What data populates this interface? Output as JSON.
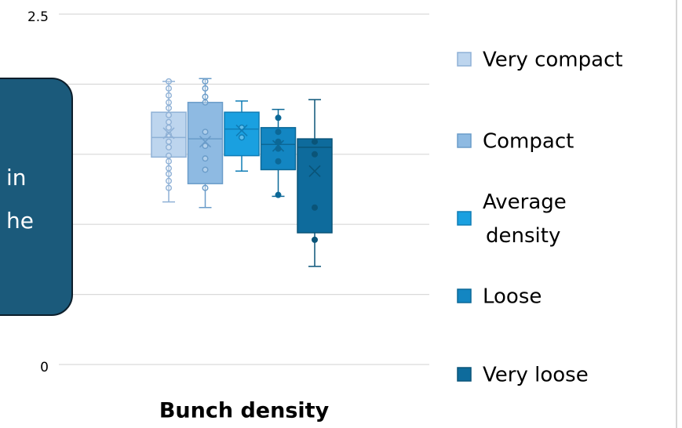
{
  "chart_data": {
    "type": "box",
    "x_label": "Bunch density",
    "ylim": [
      0,
      2.5
    ],
    "yticks": [
      0,
      0.5,
      1,
      1.5,
      2,
      2.5
    ],
    "grid": true,
    "legend": "right",
    "series": [
      {
        "name": "Very compact",
        "color": "#bdd5ee",
        "stroke": "#8fb1d6",
        "min": 1.16,
        "q1": 1.48,
        "median": 1.62,
        "q3": 1.8,
        "max": 2.02,
        "mean": 1.65,
        "points": [
          2.02,
          1.97,
          1.92,
          1.87,
          1.83,
          1.78,
          1.73,
          1.69,
          1.64,
          1.59,
          1.55,
          1.49,
          1.45,
          1.4,
          1.36,
          1.31,
          1.26
        ]
      },
      {
        "name": "Compact",
        "color": "#8ebae2",
        "stroke": "#6a9cc9",
        "min": 1.12,
        "q1": 1.29,
        "median": 1.61,
        "q3": 1.87,
        "max": 2.04,
        "mean": 1.59,
        "points": [
          2.02,
          1.97,
          1.91,
          1.87,
          1.66,
          1.56,
          1.47,
          1.39,
          1.26
        ]
      },
      {
        "name": "Average density",
        "color": "#1aa0e0",
        "stroke": "#0f7db6",
        "min": 1.38,
        "q1": 1.49,
        "median": 1.68,
        "q3": 1.8,
        "max": 1.88,
        "mean": 1.67,
        "points": [
          1.69,
          1.62
        ]
      },
      {
        "name": "Loose",
        "color": "#1386c2",
        "stroke": "#0c6897",
        "min": 1.2,
        "q1": 1.39,
        "median": 1.57,
        "q3": 1.69,
        "max": 1.82,
        "mean": 1.56,
        "points": [
          1.76,
          1.66,
          1.59,
          1.54,
          1.45,
          1.21
        ]
      },
      {
        "name": "Very loose",
        "color": "#0e6b9c",
        "stroke": "#0a5478",
        "min": 0.7,
        "q1": 0.94,
        "median": 1.55,
        "q3": 1.61,
        "max": 1.89,
        "mean": 1.38,
        "points": [
          1.59,
          1.5,
          1.12,
          0.89
        ]
      }
    ]
  },
  "callout": {
    "lines": [
      "in",
      "he"
    ]
  }
}
